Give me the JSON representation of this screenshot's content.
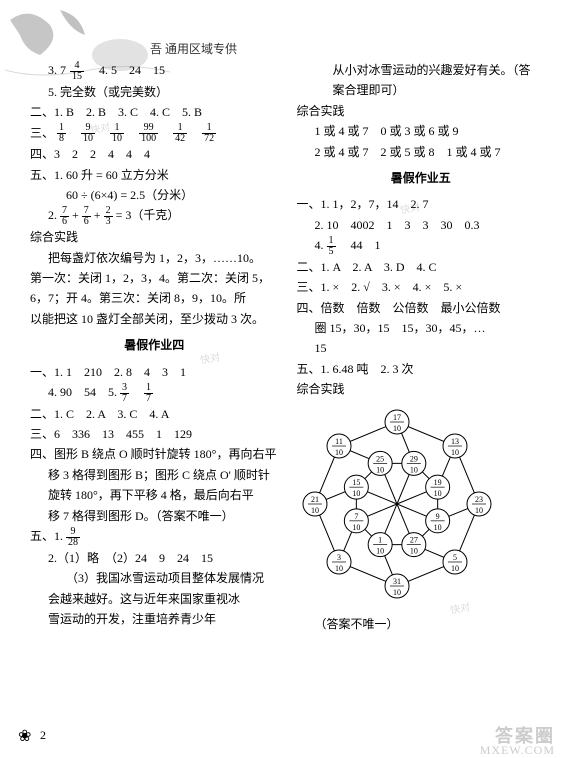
{
  "header": {
    "region_tag": "吾 通用区域专供"
  },
  "watermarks": [
    "快对",
    "快对",
    "快对",
    "快对"
  ],
  "footer": {
    "logo": "答案圈",
    "url": "MXEW.COM",
    "page": "2",
    "paw": "❀"
  },
  "left": {
    "l1_pre": "3. 7",
    "l1_frac": {
      "n": "4",
      "d": "15"
    },
    "l1_post": "　4. 5　24　15",
    "l2": "5. 完全数（或完美数）",
    "sec2": "二、1. B　2. B　3. C　4. C　5. B",
    "sec3_label": "三、",
    "sec3_fracs": [
      {
        "n": "1",
        "d": "8"
      },
      {
        "n": "9",
        "d": "10"
      },
      {
        "n": "1",
        "d": "10"
      },
      {
        "n": "99",
        "d": "100"
      },
      {
        "n": "1",
        "d": "42"
      },
      {
        "n": "1",
        "d": "72"
      }
    ],
    "sec4": "四、3　2　2　4　4　4",
    "sec5_1a": "五、1. 60 升 = 60 立方分米",
    "sec5_1b": "60 ÷ (6×4) = 2.5（分米）",
    "sec5_2pre": "2. ",
    "sec5_2_f1": {
      "n": "7",
      "d": "6"
    },
    "sec5_2_plus": " + ",
    "sec5_2_f2": {
      "n": "7",
      "d": "6"
    },
    "sec5_2_f3": {
      "n": "2",
      "d": "3"
    },
    "sec5_2post": " = 3（千克）",
    "pr_label": "综合实践",
    "pr1": "把每盏灯依次编号为 1，2，3，……10。",
    "pr2": "第一次：关闭 1，2，3，4。第二次：关闭 5，",
    "pr3": "6，7；开 4。第三次：关闭 8，9，10。所",
    "pr4": "以能把这 10 盏灯全部关闭，至少拨动 3 次。",
    "hw4_title": "暑假作业四",
    "h4_1": "一、1. 1　210　2. 8　4　3　1",
    "h4_2pre": "4. 90　54　5. ",
    "h4_2_f": [
      {
        "n": "3",
        "d": "7"
      },
      {
        "n": "1",
        "d": "7"
      }
    ],
    "h4_sec2": "二、1. C　2. A　3. C　4. A",
    "h4_sec3": "三、6　336　13　455　1　129",
    "h4_sec4a": "四、图形 B 绕点 O 顺时针旋转 180°，再向右平",
    "h4_sec4b": "移 3 格得到图形 B；图形 C 绕点 O' 顺时针",
    "h4_sec4c": "旋转 180°，再下平移 4 格，最后向右平",
    "h4_sec4d": "移 7 格得到图形 D。（答案不唯一）",
    "h4_sec5_1pre": "五、1. ",
    "h4_sec5_1_f": {
      "n": "9",
      "d": "28"
    },
    "h4_sec5_2a": "2.（1）略　（2）24　9　24　15",
    "h4_sec5_2b": "（3）我国冰雪运动项目整体发展情况",
    "h4_sec5_2c": "会越来越好。这与近年来国家重视冰",
    "h4_sec5_2d": "雪运动的开发，注重培养青少年"
  },
  "right": {
    "cont1": "从小对冰雪运动的兴趣爱好有关。（答",
    "cont2": "案合理即可）",
    "pr_label": "综合实践",
    "pr_r1": "1 或 4 或 7　0 或 3 或 6 或 9",
    "pr_r2": "2 或 4 或 7　2 或 5 或 8　1 或 4 或 7",
    "hw5_title": "暑假作业五",
    "h5_1a": "一、1. 1，2，7，14　2. 7",
    "h5_1b": "2. 10　4002　1　3　3　30　0.3",
    "h5_1c_pre": "4. ",
    "h5_1c_f": {
      "n": "1",
      "d": "5"
    },
    "h5_1c_post": "　44　1",
    "h5_2": "二、1. A　2. A　3. D　4. C",
    "h5_3": "三、1. ×　2. √　3. ×　4. ×　5. ×",
    "h5_4a": "四、倍数　倍数　公倍数　最小公倍数",
    "h5_4b": "圈 15，30，15　15，30，45，…",
    "h5_4c": "15",
    "h5_5": "五、1. 6.48 吨　2. 3 次",
    "pr2_label": "综合实践",
    "diagram_note": "（答案不唯一）",
    "diagram": {
      "outer": [
        {
          "n": "17",
          "d": "10"
        },
        {
          "n": "13",
          "d": "10"
        },
        {
          "n": "23",
          "d": "10"
        },
        {
          "n": "5",
          "d": "10"
        },
        {
          "n": "31",
          "d": "10"
        },
        {
          "n": "3",
          "d": "10"
        },
        {
          "n": "21",
          "d": "10"
        },
        {
          "n": "11",
          "d": "10"
        }
      ],
      "inner": [
        {
          "n": "29",
          "d": "10"
        },
        {
          "n": "19",
          "d": "10"
        },
        {
          "n": "9",
          "d": "10"
        },
        {
          "n": "27",
          "d": "10"
        },
        {
          "n": "1",
          "d": "10"
        },
        {
          "n": "7",
          "d": "10"
        },
        {
          "n": "15",
          "d": "10"
        },
        {
          "n": "25",
          "d": "10"
        }
      ],
      "stroke": "#000000",
      "bg": "#ffffff"
    }
  }
}
